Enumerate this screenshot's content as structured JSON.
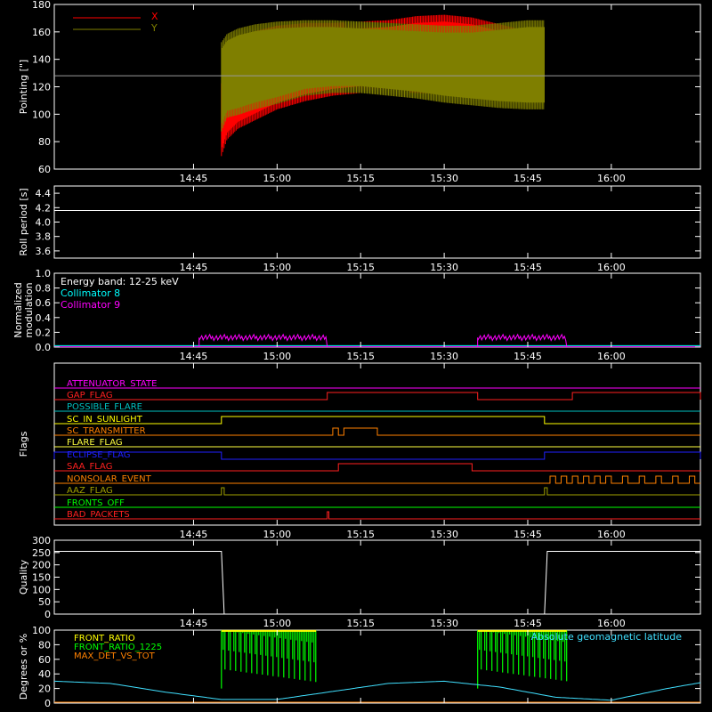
{
  "chart_data": [
    {
      "type": "line",
      "ylabel": "Pointing [\"]",
      "ylim": [
        60,
        180
      ],
      "yticks": [
        60,
        80,
        100,
        120,
        140,
        160,
        180
      ],
      "xticks": [
        "14:45",
        "15:00",
        "15:15",
        "15:30",
        "15:45",
        "16:00"
      ],
      "xlim_minutes": [
        -25,
        91
      ],
      "reference_line": 128,
      "legend": {
        "placement": "top-left",
        "entries": [
          {
            "name": "X",
            "color": "#ff0000"
          },
          {
            "name": "Y",
            "color": "#7f7f00"
          }
        ]
      },
      "series": [
        {
          "name": "X",
          "color": "#ff0000",
          "x": [
            "14:50",
            "14:51",
            "14:53",
            "14:56",
            "15:00",
            "15:05",
            "15:10",
            "15:15",
            "15:20",
            "15:25",
            "15:30",
            "15:35",
            "15:40",
            "15:45",
            "15:48"
          ],
          "lower": [
            72,
            84,
            92,
            98,
            106,
            112,
            116,
            118,
            119,
            118,
            117,
            116,
            117,
            120,
            122
          ],
          "upper": [
            120,
            140,
            152,
            158,
            162,
            164,
            164,
            165,
            166,
            169,
            170,
            168,
            163,
            158,
            155
          ]
        },
        {
          "name": "Y",
          "color": "#7f7f00",
          "x": [
            "14:50",
            "14:51",
            "14:53",
            "14:56",
            "15:00",
            "15:05",
            "15:10",
            "15:15",
            "15:20",
            "15:25",
            "15:30",
            "15:35",
            "15:40",
            "15:45",
            "15:48"
          ],
          "lower": [
            90,
            100,
            102,
            106,
            110,
            116,
            118,
            118,
            116,
            114,
            111,
            109,
            107,
            106,
            106
          ],
          "upper": [
            150,
            156,
            160,
            163,
            165,
            166,
            166,
            165,
            164,
            163,
            162,
            162,
            164,
            166,
            166
          ]
        }
      ]
    },
    {
      "type": "line",
      "ylabel": "Roll period [s]",
      "ylim": [
        3.5,
        4.5
      ],
      "yticks": [
        3.6,
        3.8,
        4.0,
        4.2,
        4.4
      ],
      "xticks": [
        "14:45",
        "15:00",
        "15:15",
        "15:30",
        "15:45",
        "16:00"
      ],
      "series": [
        {
          "name": "",
          "color": "#ffffff",
          "x": [
            "14:20",
            "16:16"
          ],
          "y": [
            4.16,
            4.16
          ]
        }
      ]
    },
    {
      "type": "line",
      "ylabel": "Normalized modulation",
      "ylim": [
        0,
        1
      ],
      "yticks": [
        0.0,
        0.2,
        0.4,
        0.6,
        0.8,
        1.0
      ],
      "xticks": [
        "14:45",
        "15:00",
        "15:15",
        "15:30",
        "15:45",
        "16:00"
      ],
      "annotation": "Energy band: 12-25 keV",
      "series": [
        {
          "name": "Collimator 8",
          "color": "#00ffff",
          "x": [
            "14:20",
            "16:16"
          ],
          "y": [
            0.02,
            0.02
          ]
        },
        {
          "name": "Collimator 9",
          "color": "#ff00ff",
          "segments": [
            {
              "start": "14:46",
              "end": "15:09",
              "y": 0.13
            },
            {
              "start": "15:36",
              "end": "15:52",
              "y": 0.13
            }
          ]
        }
      ]
    },
    {
      "type": "line",
      "ylabel": "Flags",
      "xticks": [
        "14:45",
        "15:00",
        "15:15",
        "15:30",
        "15:45",
        "16:00"
      ],
      "flags": [
        {
          "name": "ATTENUATOR_STATE",
          "color": "#ff00ff",
          "on": []
        },
        {
          "name": "GAP_FLAG",
          "color": "#ff2020",
          "on": [
            [
              "15:09",
              "15:36"
            ],
            [
              "15:53",
              "16:16"
            ]
          ]
        },
        {
          "name": "POSSIBLE_FLARE",
          "color": "#00c0c0",
          "on": []
        },
        {
          "name": "SC_IN_SUNLIGHT",
          "color": "#ffff00",
          "on": [
            [
              "14:50",
              "15:48"
            ]
          ]
        },
        {
          "name": "SC_TRANSMITTER",
          "color": "#ff8000",
          "on": [
            [
              "15:10",
              "15:11"
            ],
            [
              "15:12",
              "15:18"
            ]
          ]
        },
        {
          "name": "FLARE_FLAG",
          "color": "#ffff40",
          "on": []
        },
        {
          "name": "ECLIPSE_FLAG",
          "color": "#2020ff",
          "on": [
            [
              "14:20",
              "14:50"
            ],
            [
              "15:48",
              "16:16"
            ]
          ]
        },
        {
          "name": "SAA_FLAG",
          "color": "#ff2020",
          "on": [
            [
              "15:11",
              "15:35"
            ]
          ]
        },
        {
          "name": "NONSOLAR_EVENT",
          "color": "#ff8000",
          "on": [
            [
              "15:49",
              "15:50"
            ],
            [
              "15:51",
              "15:52"
            ],
            [
              "15:53",
              "15:54"
            ],
            [
              "15:55",
              "15:56"
            ],
            [
              "15:57",
              "15:58"
            ],
            [
              "15:59",
              "16:00"
            ],
            [
              "16:02",
              "16:03"
            ],
            [
              "16:05",
              "16:06"
            ],
            [
              "16:08",
              "16:09"
            ],
            [
              "16:11",
              "16:12"
            ],
            [
              "16:14",
              "16:15"
            ]
          ]
        },
        {
          "name": "AAZ_FLAG",
          "color": "#a0a000",
          "on": [
            [
              "14:50",
              "14:50.5"
            ],
            [
              "15:48",
              "15:48.5"
            ]
          ]
        },
        {
          "name": "FRONTS_OFF",
          "color": "#00ff00",
          "on": []
        },
        {
          "name": "BAD_PACKETS",
          "color": "#ff2020",
          "on": [
            [
              "15:09",
              "15:09.3"
            ]
          ]
        }
      ]
    },
    {
      "type": "line",
      "ylabel": "Quality",
      "ylim": [
        0,
        300
      ],
      "yticks": [
        0,
        50,
        100,
        150,
        200,
        250,
        300
      ],
      "xticks": [
        "14:45",
        "15:00",
        "15:15",
        "15:30",
        "15:45",
        "16:00"
      ],
      "series": [
        {
          "name": "",
          "color": "#ffffff",
          "x": [
            "14:20",
            "14:50",
            "14:50.5",
            "15:48",
            "15:48.5",
            "16:16"
          ],
          "y": [
            255,
            255,
            0,
            0,
            255,
            255
          ]
        }
      ]
    },
    {
      "type": "line",
      "ylabel": "Degrees or %",
      "ylim": [
        0,
        100
      ],
      "yticks": [
        0,
        20,
        40,
        60,
        80,
        100
      ],
      "xticks": [
        "14:45",
        "15:00",
        "15:15",
        "15:30",
        "15:45",
        "16:00"
      ],
      "legend_right": "Absolute geomagnetic latitude",
      "series": [
        {
          "name": "FRONT_RATIO",
          "color": "#ffff00",
          "segments": [
            {
              "start": "14:50",
              "end": "15:07"
            },
            {
              "start": "15:36",
              "end": "15:52"
            }
          ]
        },
        {
          "name": "FRONT_RATIO_1225",
          "color": "#00ff00",
          "segments": [
            {
              "start": "14:50",
              "end": "15:07"
            },
            {
              "start": "15:36",
              "end": "15:52"
            }
          ]
        },
        {
          "name": "MAX_DET_VS_TOT",
          "color": "#ff8000",
          "x": [
            "14:20",
            "16:16"
          ],
          "y": [
            0,
            0
          ]
        },
        {
          "name": "Absolute geomagnetic latitude",
          "color": "#40e0ff",
          "x": [
            "14:20",
            "14:30",
            "14:40",
            "14:50",
            "15:00",
            "15:10",
            "15:20",
            "15:30",
            "15:40",
            "15:50",
            "16:00",
            "16:10",
            "16:16"
          ],
          "y": [
            30,
            27,
            15,
            5,
            5,
            16,
            27,
            30,
            22,
            8,
            4,
            20,
            28
          ]
        }
      ]
    }
  ]
}
